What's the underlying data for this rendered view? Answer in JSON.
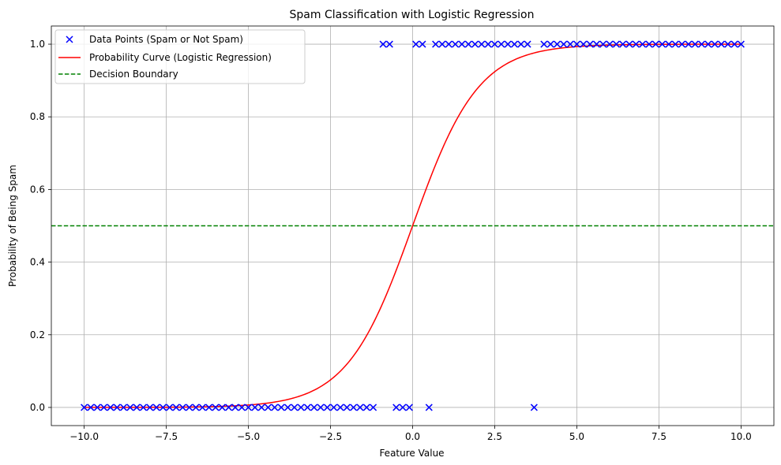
{
  "chart_data": {
    "type": "scatter",
    "title": "Spam Classification with Logistic Regression",
    "xlabel": "Feature Value",
    "ylabel": "Probability of Being Spam",
    "xlim": [
      -11,
      11
    ],
    "ylim": [
      -0.05,
      1.05
    ],
    "x_ticks": [
      -10,
      -7.5,
      -5,
      -2.5,
      0,
      2.5,
      5,
      7.5,
      10
    ],
    "x_tick_labels": [
      "−10.0",
      "−7.5",
      "−5.0",
      "−2.5",
      "0.0",
      "2.5",
      "5.0",
      "7.5",
      "10.0"
    ],
    "y_ticks": [
      0,
      0.2,
      0.4,
      0.6,
      0.8,
      1.0
    ],
    "y_tick_labels": [
      "0.0",
      "0.2",
      "0.4",
      "0.6",
      "0.8",
      "1.0"
    ],
    "grid": true,
    "legend_position": "top-left",
    "series": [
      {
        "name": "Data Points (Spam or Not Spam)",
        "kind": "scatter",
        "marker": "x",
        "color": "#0000ff",
        "points": [
          [
            -10.0,
            0
          ],
          [
            -9.8,
            0
          ],
          [
            -9.6,
            0
          ],
          [
            -9.4,
            0
          ],
          [
            -9.2,
            0
          ],
          [
            -9.0,
            0
          ],
          [
            -8.8,
            0
          ],
          [
            -8.6,
            0
          ],
          [
            -8.4,
            0
          ],
          [
            -8.2,
            0
          ],
          [
            -8.0,
            0
          ],
          [
            -7.8,
            0
          ],
          [
            -7.6,
            0
          ],
          [
            -7.4,
            0
          ],
          [
            -7.2,
            0
          ],
          [
            -7.0,
            0
          ],
          [
            -6.8,
            0
          ],
          [
            -6.6,
            0
          ],
          [
            -6.4,
            0
          ],
          [
            -6.2,
            0
          ],
          [
            -6.0,
            0
          ],
          [
            -5.8,
            0
          ],
          [
            -5.6,
            0
          ],
          [
            -5.4,
            0
          ],
          [
            -5.2,
            0
          ],
          [
            -5.0,
            0
          ],
          [
            -4.8,
            0
          ],
          [
            -4.6,
            0
          ],
          [
            -4.4,
            0
          ],
          [
            -4.2,
            0
          ],
          [
            -4.0,
            0
          ],
          [
            -3.8,
            0
          ],
          [
            -3.6,
            0
          ],
          [
            -3.4,
            0
          ],
          [
            -3.2,
            0
          ],
          [
            -3.0,
            0
          ],
          [
            -2.8,
            0
          ],
          [
            -2.6,
            0
          ],
          [
            -2.4,
            0
          ],
          [
            -2.2,
            0
          ],
          [
            -2.0,
            0
          ],
          [
            -1.8,
            0
          ],
          [
            -1.6,
            0
          ],
          [
            -1.4,
            0
          ],
          [
            -1.2,
            0
          ],
          [
            -0.5,
            0
          ],
          [
            -0.3,
            0
          ],
          [
            -0.1,
            0
          ],
          [
            0.5,
            0
          ],
          [
            3.7,
            0
          ],
          [
            -0.9,
            1
          ],
          [
            -0.7,
            1
          ],
          [
            0.1,
            1
          ],
          [
            0.3,
            1
          ],
          [
            0.7,
            1
          ],
          [
            0.9,
            1
          ],
          [
            1.1,
            1
          ],
          [
            1.3,
            1
          ],
          [
            1.5,
            1
          ],
          [
            1.7,
            1
          ],
          [
            1.9,
            1
          ],
          [
            2.1,
            1
          ],
          [
            2.3,
            1
          ],
          [
            2.5,
            1
          ],
          [
            2.7,
            1
          ],
          [
            2.9,
            1
          ],
          [
            3.1,
            1
          ],
          [
            3.3,
            1
          ],
          [
            3.5,
            1
          ],
          [
            4.0,
            1
          ],
          [
            4.2,
            1
          ],
          [
            4.4,
            1
          ],
          [
            4.6,
            1
          ],
          [
            4.8,
            1
          ],
          [
            5.0,
            1
          ],
          [
            5.2,
            1
          ],
          [
            5.4,
            1
          ],
          [
            5.6,
            1
          ],
          [
            5.8,
            1
          ],
          [
            6.0,
            1
          ],
          [
            6.2,
            1
          ],
          [
            6.4,
            1
          ],
          [
            6.6,
            1
          ],
          [
            6.8,
            1
          ],
          [
            7.0,
            1
          ],
          [
            7.2,
            1
          ],
          [
            7.4,
            1
          ],
          [
            7.6,
            1
          ],
          [
            7.8,
            1
          ],
          [
            8.0,
            1
          ],
          [
            8.2,
            1
          ],
          [
            8.4,
            1
          ],
          [
            8.6,
            1
          ],
          [
            8.8,
            1
          ],
          [
            9.0,
            1
          ],
          [
            9.2,
            1
          ],
          [
            9.4,
            1
          ],
          [
            9.6,
            1
          ],
          [
            9.8,
            1
          ],
          [
            10.0,
            1
          ]
        ]
      },
      {
        "name": "Probability Curve (Logistic Regression)",
        "kind": "line",
        "color": "#ff0000",
        "function": "logistic",
        "coefficient": 1.0,
        "intercept": 0.0,
        "x_range": [
          -10,
          10
        ]
      },
      {
        "name": "Decision Boundary",
        "kind": "hline",
        "color": "#008000",
        "dashed": true,
        "y": 0.5
      }
    ]
  }
}
